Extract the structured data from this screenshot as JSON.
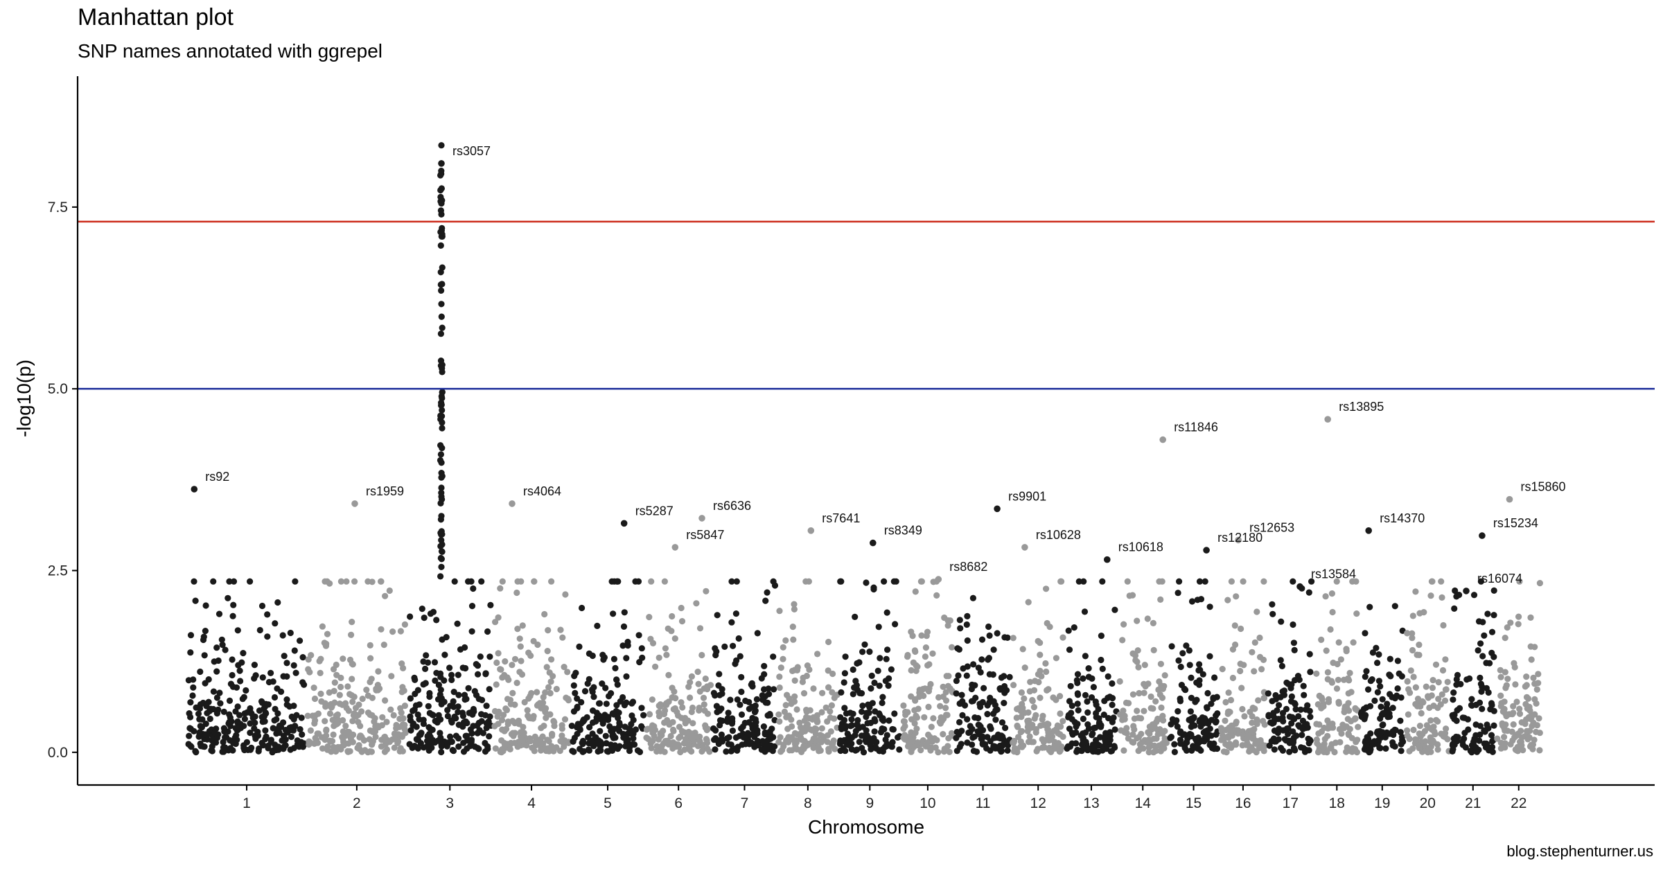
{
  "chart_data": {
    "type": "scatter",
    "title": "Manhattan plot",
    "subtitle": "SNP names annotated with ggrepel",
    "xlabel": "Chromosome",
    "ylabel": "-log10(p)",
    "ylim": [
      -0.45,
      9.3
    ],
    "yticks": [
      0.0,
      2.5,
      5.0,
      7.5
    ],
    "ytick_labels": [
      "0.0",
      "2.5",
      "5.0",
      "7.5"
    ],
    "caption": "blog.stephenturner.us",
    "colors": {
      "odd": "#1a1a1a",
      "even": "#999999",
      "genomewide_line": "#cc2a1a",
      "suggestive_line": "#1a2b99"
    },
    "thresholds": {
      "genomewide": 7.3,
      "suggestive": 5.0
    },
    "chromosomes": [
      {
        "name": "1",
        "start": 0.0,
        "end": 0.088
      },
      {
        "name": "2",
        "start": 0.088,
        "end": 0.1625
      },
      {
        "name": "3",
        "start": 0.1625,
        "end": 0.2255
      },
      {
        "name": "4",
        "start": 0.2255,
        "end": 0.283
      },
      {
        "name": "5",
        "start": 0.283,
        "end": 0.338
      },
      {
        "name": "6",
        "start": 0.338,
        "end": 0.3875
      },
      {
        "name": "7",
        "start": 0.3875,
        "end": 0.4355
      },
      {
        "name": "8",
        "start": 0.4355,
        "end": 0.481
      },
      {
        "name": "9",
        "start": 0.481,
        "end": 0.527
      },
      {
        "name": "10",
        "start": 0.527,
        "end": 0.5665
      },
      {
        "name": "11",
        "start": 0.5665,
        "end": 0.6085
      },
      {
        "name": "12",
        "start": 0.6085,
        "end": 0.648
      },
      {
        "name": "13",
        "start": 0.648,
        "end": 0.687
      },
      {
        "name": "14",
        "start": 0.687,
        "end": 0.724
      },
      {
        "name": "15",
        "start": 0.724,
        "end": 0.762
      },
      {
        "name": "16",
        "start": 0.762,
        "end": 0.797
      },
      {
        "name": "17",
        "start": 0.797,
        "end": 0.832
      },
      {
        "name": "18",
        "start": 0.832,
        "end": 0.8655
      },
      {
        "name": "19",
        "start": 0.8655,
        "end": 0.899
      },
      {
        "name": "20",
        "start": 0.899,
        "end": 0.9325
      },
      {
        "name": "21",
        "start": 0.9325,
        "end": 0.966
      },
      {
        "name": "22",
        "start": 0.966,
        "end": 1.0
      }
    ],
    "annotated_snps": [
      {
        "name": "rs92",
        "chr": "1",
        "pos": 0.06,
        "p": 3.62
      },
      {
        "name": "rs1959",
        "chr": "2",
        "pos": 0.48,
        "p": 3.42
      },
      {
        "name": "rs3057",
        "chr": "3",
        "pos": 0.4,
        "p": 8.1
      },
      {
        "name": "rs4064",
        "chr": "4",
        "pos": 0.25,
        "p": 3.42
      },
      {
        "name": "rs5287",
        "chr": "5",
        "pos": 0.72,
        "p": 3.15
      },
      {
        "name": "rs6636",
        "chr": "6",
        "pos": 0.85,
        "p": 3.22
      },
      {
        "name": "rs5847",
        "chr": "6",
        "pos": 0.45,
        "p": 2.82
      },
      {
        "name": "rs7641",
        "chr": "8",
        "pos": 0.55,
        "p": 3.05
      },
      {
        "name": "rs8349",
        "chr": "9",
        "pos": 0.55,
        "p": 2.88
      },
      {
        "name": "rs8682",
        "chr": "10",
        "pos": 0.7,
        "p": 2.38
      },
      {
        "name": "rs9901",
        "chr": "11",
        "pos": 0.75,
        "p": 3.35
      },
      {
        "name": "rs10628",
        "chr": "12",
        "pos": 0.25,
        "p": 2.82
      },
      {
        "name": "rs10618",
        "chr": "13",
        "pos": 0.8,
        "p": 2.65
      },
      {
        "name": "rs11846",
        "chr": "14",
        "pos": 0.9,
        "p": 4.3
      },
      {
        "name": "rs12180",
        "chr": "15",
        "pos": 0.75,
        "p": 2.78
      },
      {
        "name": "rs12653",
        "chr": "16",
        "pos": 0.4,
        "p": 2.92
      },
      {
        "name": "rs13895",
        "chr": "18",
        "pos": 0.3,
        "p": 4.58
      },
      {
        "name": "rs13584",
        "chr": "17",
        "pos": 0.7,
        "p": 2.28
      },
      {
        "name": "rs14370",
        "chr": "19",
        "pos": 0.2,
        "p": 3.05
      },
      {
        "name": "rs15234",
        "chr": "21",
        "pos": 0.7,
        "p": 2.98
      },
      {
        "name": "rs16074",
        "chr": "21",
        "pos": 0.35,
        "p": 2.22
      },
      {
        "name": "rs15860",
        "chr": "22",
        "pos": 0.3,
        "p": 3.48
      }
    ]
  }
}
